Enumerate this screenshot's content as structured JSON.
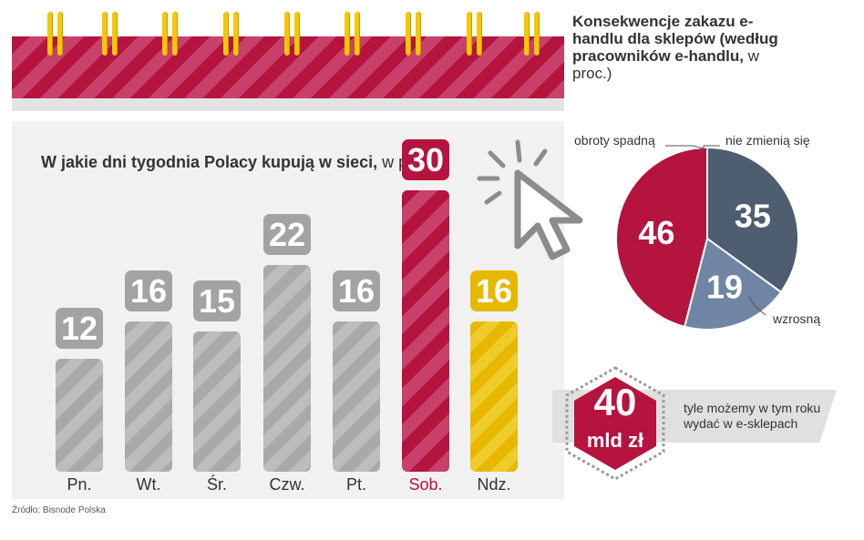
{
  "calendar": {
    "colors": {
      "band_dark": "#b5143f",
      "band_light": "#c8416a",
      "rings": "#f5c800"
    }
  },
  "bar_chart": {
    "title_bold": "W jakie dni tygodnia Polacy kupują w sieci,",
    "title_light": " w proc."
  },
  "chart_data": [
    {
      "type": "bar",
      "title": "W jakie dni tygodnia Polacy kupują w sieci, w proc.",
      "categories": [
        "Pn.",
        "Wt.",
        "Śr.",
        "Czw.",
        "Pt.",
        "Sob.",
        "Ndz."
      ],
      "values": [
        12,
        16,
        15,
        22,
        16,
        30,
        16
      ],
      "colors": [
        "#aaaaaa",
        "#aaaaaa",
        "#aaaaaa",
        "#aaaaaa",
        "#aaaaaa",
        "#b5143f",
        "#e6b800"
      ],
      "ylim": [
        0,
        30
      ],
      "grid": false,
      "legend": "none"
    },
    {
      "type": "pie",
      "title": "Konsekwencje zakazu e-handlu dla sklepów (według pracowników e-handlu, w proc.)",
      "categories": [
        "obroty spadną",
        "nie zmienią się",
        "wzrosną"
      ],
      "values": [
        46,
        35,
        19
      ],
      "colors": [
        "#b5143f",
        "#4e5d70",
        "#6f85a3"
      ]
    }
  ],
  "pie": {
    "title_bold": "Konsekwencje zakazu e-handlu dla sklepów (według pracowników e-handlu,",
    "title_light": " w proc.)",
    "caption_spadna": "obroty spadną",
    "caption_nie": "nie zmienią się",
    "caption_wzrosna": "wzrosną"
  },
  "callout": {
    "value": "40",
    "unit": "mld zł",
    "text": "tyle możemy w tym roku wydać w e-sklepach",
    "hex_color": "#b5143f"
  },
  "source": "Źródło: Bisnode Polska",
  "icons": {
    "cursor": "mouse-pointer-icon"
  }
}
